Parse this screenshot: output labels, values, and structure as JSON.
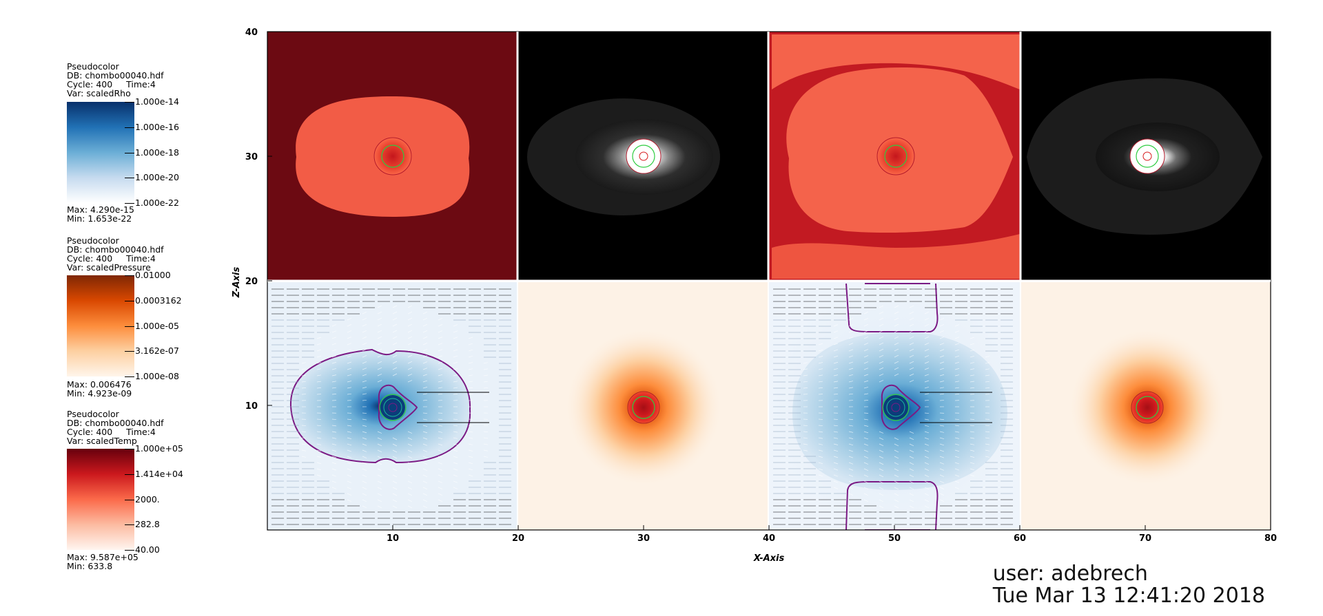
{
  "legends": [
    {
      "plot_type": "Pseudocolor",
      "db": "DB: chombo00040.hdf",
      "cycle": "Cycle: 400",
      "time": "Time:4",
      "var": "Var: scaledRho",
      "ticks": [
        "1.000e-14",
        "1.000e-16",
        "1.000e-18",
        "1.000e-20",
        "1.000e-22"
      ],
      "max": "Max:  4.290e-15",
      "min": "Min:  1.653e-22",
      "colors": [
        "#08306b",
        "#2171b5",
        "#6baed6",
        "#c6dbef",
        "#ffffff"
      ]
    },
    {
      "plot_type": "Pseudocolor",
      "db": "DB: chombo00040.hdf",
      "cycle": "Cycle: 400",
      "time": "Time:4",
      "var": "Var: scaledPressure",
      "ticks": [
        "0.01000",
        "0.0003162",
        "1.000e-05",
        "3.162e-07",
        "1.000e-08"
      ],
      "max": "Max:  0.006476",
      "min": "Min:  4.923e-09",
      "colors": [
        "#7f2704",
        "#d94801",
        "#fd8d3c",
        "#fdd0a2",
        "#fff5eb"
      ]
    },
    {
      "plot_type": "Pseudocolor",
      "db": "DB: chombo00040.hdf",
      "cycle": "Cycle: 400",
      "time": "Time:4",
      "var": "Var: scaledTemp",
      "ticks": [
        "1.000e+05",
        "1.414e+04",
        "2000.",
        "282.8",
        "40.00"
      ],
      "max": "Max:  9.587e+05",
      "min": "Min:  633.8",
      "colors": [
        "#67000d",
        "#cb181d",
        "#fb6a4a",
        "#fcbba1",
        "#fff5f0"
      ]
    }
  ],
  "chart_data": {
    "type": "heatmap",
    "xlabel": "X-Axis",
    "ylabel": "Z-Axis",
    "xlim": [
      0,
      80
    ],
    "ylim": [
      0,
      40
    ],
    "xticks": [
      "10",
      "20",
      "30",
      "40",
      "50",
      "60",
      "70",
      "80"
    ],
    "xtick_values": [
      10,
      20,
      30,
      40,
      50,
      60,
      70,
      80
    ],
    "yticks": [
      "10",
      "20",
      "30",
      "40"
    ],
    "ytick_values": [
      10,
      20,
      30,
      40
    ],
    "panels": [
      {
        "name": "temperature",
        "x": [
          0,
          20
        ],
        "y": [
          20,
          40
        ],
        "center": [
          10,
          30
        ]
      },
      {
        "name": "grayscale",
        "x": [
          20,
          40
        ],
        "y": [
          20,
          40
        ],
        "center": [
          30,
          30
        ]
      },
      {
        "name": "temperature",
        "x": [
          40,
          60
        ],
        "y": [
          20,
          40
        ],
        "center": [
          50,
          30
        ]
      },
      {
        "name": "grayscale",
        "x": [
          60,
          80
        ],
        "y": [
          20,
          40
        ],
        "center": [
          70,
          30
        ]
      },
      {
        "name": "density",
        "x": [
          0,
          20
        ],
        "y": [
          0,
          20
        ],
        "center": [
          10,
          10
        ]
      },
      {
        "name": "pressure",
        "x": [
          20,
          40
        ],
        "y": [
          0,
          20
        ],
        "center": [
          30,
          10
        ]
      },
      {
        "name": "density",
        "x": [
          40,
          60
        ],
        "y": [
          0,
          20
        ],
        "center": [
          50,
          10
        ]
      },
      {
        "name": "pressure",
        "x": [
          60,
          80
        ],
        "y": [
          0,
          20
        ],
        "center": [
          70,
          10
        ]
      }
    ]
  },
  "user_info": {
    "user": "user: adebrech",
    "date": "Tue Mar 13 12:41:20 2018"
  }
}
